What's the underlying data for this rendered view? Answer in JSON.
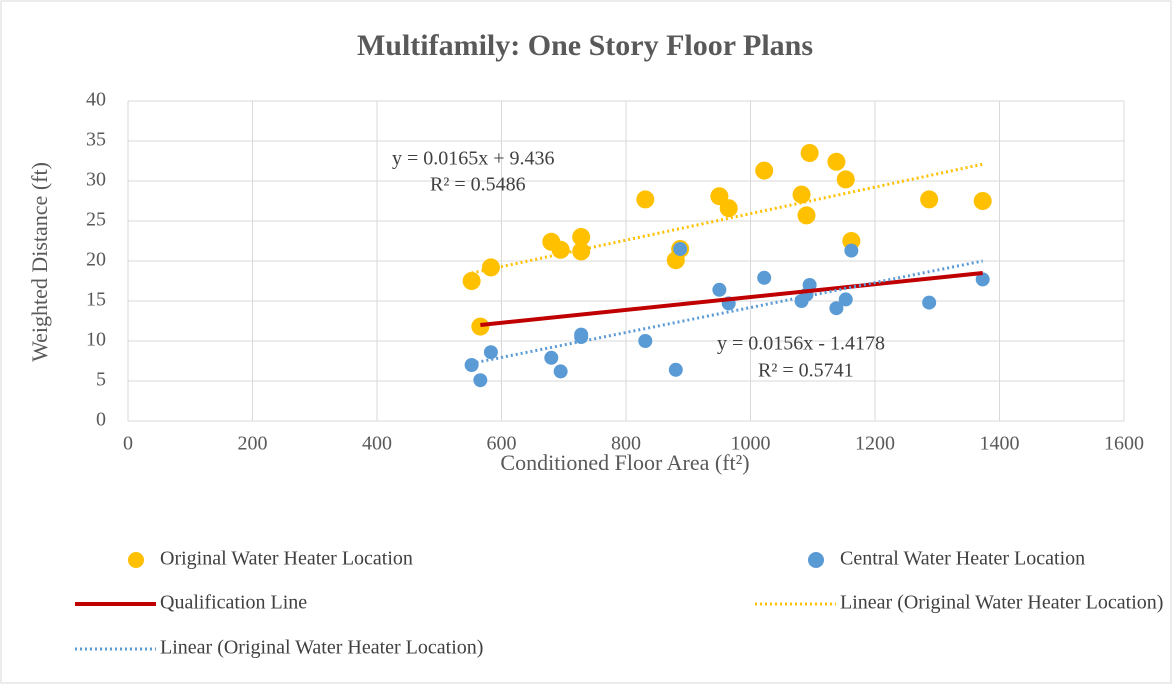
{
  "chart_data": {
    "type": "scatter",
    "title": "Multifamily:  One Story Floor Plans",
    "x_label": "Conditioned Floor Area (ft²)",
    "y_label": "Weighted Distance (ft)",
    "xlim": [
      0,
      1600
    ],
    "xticks": [
      0,
      200,
      400,
      600,
      800,
      1000,
      1200,
      1400,
      1600
    ],
    "ylim": [
      0,
      40
    ],
    "yticks": [
      0,
      5,
      10,
      15,
      20,
      25,
      30,
      35,
      40
    ],
    "grid": true,
    "legend": "bottom",
    "series": [
      {
        "name": "Original Water Heater Location",
        "kind": "marker",
        "color": "#ffc000",
        "x": [
          552,
          583,
          566,
          680,
          695,
          728,
          728,
          831,
          880,
          887,
          950,
          965,
          1022,
          1082,
          1090,
          1095,
          1138,
          1153,
          1162,
          1287,
          1373
        ],
        "values": [
          17.5,
          19.2,
          11.8,
          22.4,
          21.4,
          23.0,
          21.2,
          27.7,
          20.1,
          21.5,
          28.1,
          26.6,
          31.3,
          28.3,
          25.7,
          33.5,
          32.4,
          30.2,
          22.5,
          27.7,
          27.5
        ]
      },
      {
        "name": "Central Water Heater Location",
        "kind": "marker",
        "color": "#5b9bd5",
        "x": [
          552,
          566,
          583,
          680,
          695,
          728,
          728,
          831,
          880,
          887,
          950,
          965,
          1022,
          1082,
          1090,
          1095,
          1138,
          1153,
          1162,
          1287,
          1373
        ],
        "values": [
          7.0,
          5.1,
          8.6,
          7.9,
          6.2,
          10.5,
          10.8,
          10.0,
          6.4,
          21.5,
          16.4,
          14.7,
          17.9,
          15.0,
          15.8,
          17.0,
          14.1,
          15.2,
          21.3,
          14.8,
          17.7
        ]
      },
      {
        "name": "Qualification Line",
        "kind": "line",
        "color": "#c00000",
        "x": [
          566,
          1373
        ],
        "values": [
          12.0,
          18.5
        ]
      },
      {
        "name": "Linear (Original Water Heater Location)",
        "kind": "dotted",
        "color": "#ffc000",
        "x": [
          552,
          1373
        ],
        "values": [
          18.5,
          32.1
        ]
      },
      {
        "name": "Linear (Original Water Heater Location)",
        "kind": "dotted",
        "color": "#5b9bd5",
        "x": [
          552,
          1373
        ],
        "values": [
          7.2,
          20.0
        ]
      }
    ],
    "annotations": [
      "y = 0.0165x + 9.436",
      "R² = 0.5486",
      "y = 0.0156x - 1.4178",
      "R² = 0.5741"
    ]
  }
}
